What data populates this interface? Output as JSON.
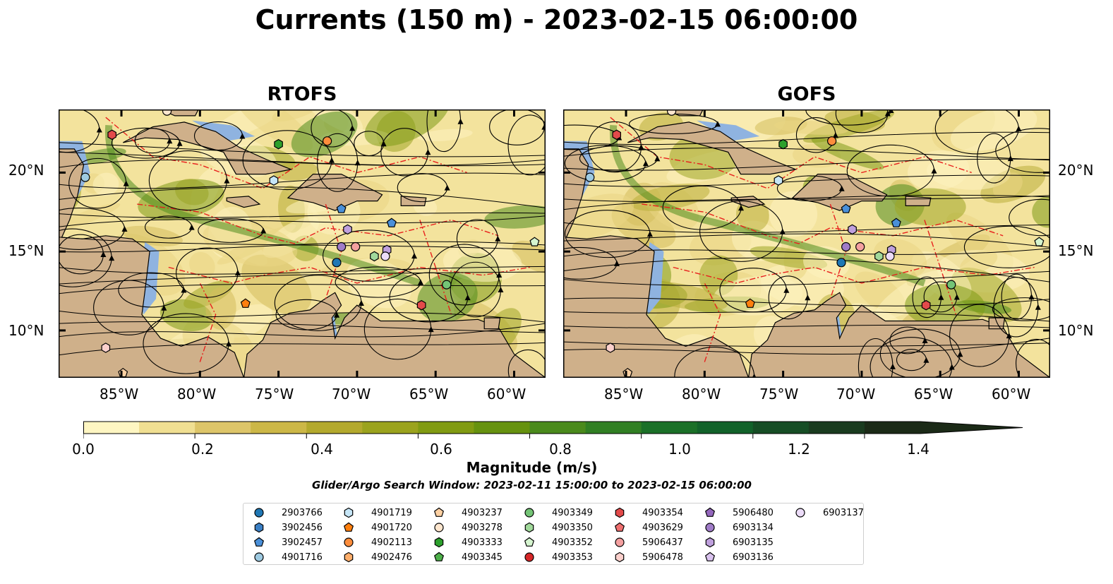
{
  "title": "Currents (150 m) - 2023-02-15 06:00:00",
  "panels": [
    {
      "title": "RTOFS"
    },
    {
      "title": "GOFS"
    }
  ],
  "lon_labels": [
    "85°W",
    "80°W",
    "75°W",
    "70°W",
    "65°W",
    "60°W"
  ],
  "lat_labels": [
    "20°N",
    "15°N",
    "10°N"
  ],
  "colorbar": {
    "label": "Magnitude (m/s)",
    "ticks": [
      "0.0",
      "0.2",
      "0.4",
      "0.6",
      "0.8",
      "1.0",
      "1.2",
      "1.4"
    ],
    "range": [
      0.0,
      1.5
    ],
    "colors": [
      "#fef6c2",
      "#f0df92",
      "#ddc569",
      "#ccb747",
      "#b3a92d",
      "#9ba31d",
      "#819b12",
      "#66920f",
      "#4a8a1c",
      "#317f23",
      "#1b7028",
      "#12622a",
      "#164d25",
      "#1a3b1f",
      "#1b2a17"
    ]
  },
  "search_window": "Glider/Argo Search Window: 2023-02-11 15:00:00 to 2023-02-15 06:00:00",
  "legend": [
    {
      "id": "2903766",
      "shape": "circle",
      "color": "#1f77b4"
    },
    {
      "id": "3902456",
      "shape": "hexagon",
      "color": "#3a7fc4"
    },
    {
      "id": "3902457",
      "shape": "pentagon",
      "color": "#4a90d9"
    },
    {
      "id": "4901716",
      "shape": "circle",
      "color": "#9ecae1"
    },
    {
      "id": "4901719",
      "shape": "hexagon",
      "color": "#c6e6f7"
    },
    {
      "id": "4901720",
      "shape": "pentagon",
      "color": "#ff7f0e"
    },
    {
      "id": "4902113",
      "shape": "circle",
      "color": "#fd8d3c"
    },
    {
      "id": "4902476",
      "shape": "hexagon",
      "color": "#fdae6b"
    },
    {
      "id": "4903237",
      "shape": "pentagon",
      "color": "#fdd0a2"
    },
    {
      "id": "4903278",
      "shape": "circle",
      "color": "#fee6ce"
    },
    {
      "id": "4903333",
      "shape": "hexagon",
      "color": "#2ca02c"
    },
    {
      "id": "4903345",
      "shape": "pentagon",
      "color": "#4daf4a"
    },
    {
      "id": "4903349",
      "shape": "circle",
      "color": "#74c476"
    },
    {
      "id": "4903350",
      "shape": "hexagon",
      "color": "#a1d99b"
    },
    {
      "id": "4903352",
      "shape": "pentagon",
      "color": "#d6f5d0"
    },
    {
      "id": "4903353",
      "shape": "circle",
      "color": "#d62728"
    },
    {
      "id": "4903354",
      "shape": "hexagon",
      "color": "#e34a4a"
    },
    {
      "id": "4903629",
      "shape": "pentagon",
      "color": "#ef6f6f"
    },
    {
      "id": "5906437",
      "shape": "circle",
      "color": "#f4a0a0"
    },
    {
      "id": "5906478",
      "shape": "hexagon",
      "color": "#fbd0cc"
    },
    {
      "id": "5906480",
      "shape": "pentagon",
      "color": "#9467bd"
    },
    {
      "id": "6903134",
      "shape": "circle",
      "color": "#a07cc8"
    },
    {
      "id": "6903135",
      "shape": "hexagon",
      "color": "#bfa0dd"
    },
    {
      "id": "6903136",
      "shape": "pentagon",
      "color": "#d9c2ee"
    },
    {
      "id": "6903137",
      "shape": "circle",
      "color": "#ecdcf8"
    }
  ],
  "markers": [
    {
      "id": "4905",
      "lon": -87.3,
      "lat": 19.7,
      "shape": "circle",
      "color": "#9ecae1"
    },
    {
      "id": "a",
      "lon": -85.6,
      "lat": 22.4,
      "shape": "hexagon",
      "color": "#e34a4a"
    },
    {
      "id": "b",
      "lon": -82.1,
      "lat": 23.9,
      "shape": "circle",
      "color": "#fee6ce"
    },
    {
      "id": "c",
      "lon": -75.0,
      "lat": 21.8,
      "shape": "hexagon",
      "color": "#2ca02c"
    },
    {
      "id": "d",
      "lon": -71.9,
      "lat": 22.0,
      "shape": "circle",
      "color": "#fd8d3c"
    },
    {
      "id": "e",
      "lon": -75.3,
      "lat": 19.5,
      "shape": "hexagon",
      "color": "#c6e6f7"
    },
    {
      "id": "f",
      "lon": -71.0,
      "lat": 17.7,
      "shape": "pentagon",
      "color": "#4a90d9"
    },
    {
      "id": "g",
      "lon": -70.6,
      "lat": 16.4,
      "shape": "hexagon",
      "color": "#bfa0dd"
    },
    {
      "id": "h",
      "lon": -71.0,
      "lat": 15.3,
      "shape": "circle",
      "color": "#a07cc8"
    },
    {
      "id": "i",
      "lon": -70.1,
      "lat": 15.3,
      "shape": "circle",
      "color": "#f4a0a0"
    },
    {
      "id": "j",
      "lon": -67.8,
      "lat": 16.8,
      "shape": "pentagon",
      "color": "#4a90d9"
    },
    {
      "id": "k",
      "lon": -71.3,
      "lat": 14.3,
      "shape": "circle",
      "color": "#1f77b4"
    },
    {
      "id": "l",
      "lon": -68.9,
      "lat": 14.7,
      "shape": "hexagon",
      "color": "#a1d99b"
    },
    {
      "id": "m",
      "lon": -68.1,
      "lat": 15.1,
      "shape": "hexagon",
      "color": "#bfa0dd"
    },
    {
      "id": "n",
      "lon": -68.2,
      "lat": 14.7,
      "shape": "circle",
      "color": "#ecdcf8"
    },
    {
      "id": "o",
      "lon": -64.3,
      "lat": 12.9,
      "shape": "circle",
      "color": "#74c476"
    },
    {
      "id": "p",
      "lon": -65.9,
      "lat": 11.6,
      "shape": "hexagon",
      "color": "#e34a4a"
    },
    {
      "id": "q",
      "lon": -77.1,
      "lat": 11.7,
      "shape": "pentagon",
      "color": "#ff7f0e"
    },
    {
      "id": "r",
      "lon": -58.7,
      "lat": 15.6,
      "shape": "pentagon",
      "color": "#d6f5d0"
    },
    {
      "id": "s",
      "lon": -86.0,
      "lat": 8.9,
      "shape": "hexagon",
      "color": "#fbd0cc"
    },
    {
      "id": "t",
      "lon": -84.9,
      "lat": 7.3,
      "shape": "pentagon",
      "color": "#fdd0a2"
    }
  ]
}
